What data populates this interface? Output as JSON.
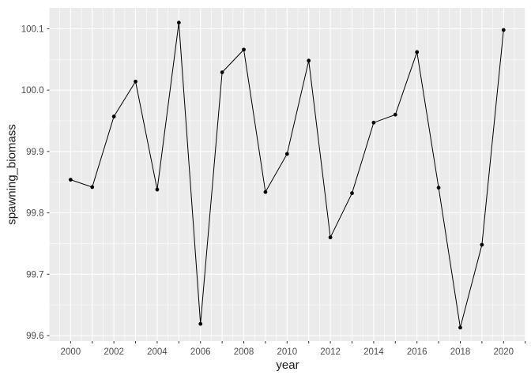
{
  "chart_data": {
    "type": "line",
    "title": "",
    "xlabel": "year",
    "ylabel": "spawning_biomass",
    "series": [
      {
        "name": "spawning_biomass",
        "x": [
          2000,
          2001,
          2002,
          2003,
          2004,
          2005,
          2006,
          2007,
          2008,
          2009,
          2010,
          2011,
          2012,
          2013,
          2014,
          2015,
          2016,
          2017,
          2018,
          2019,
          2020
        ],
        "values": [
          99.854,
          99.842,
          99.957,
          100.014,
          99.838,
          100.11,
          99.619,
          100.029,
          100.066,
          99.834,
          99.896,
          100.048,
          99.76,
          99.832,
          99.947,
          99.96,
          100.062,
          99.841,
          99.613,
          99.748,
          100.098
        ]
      }
    ],
    "xlim": [
      1999.02,
      2021.03
    ],
    "ylim": [
      99.591,
      100.134
    ],
    "x_labeled_years": [
      2000,
      2002,
      2004,
      2006,
      2008,
      2010,
      2012,
      2014,
      2016,
      2018,
      2020
    ],
    "x_tick_labels": [
      "2000",
      "2002",
      "2004",
      "2006",
      "2008",
      "2010",
      "2012",
      "2014",
      "2016",
      "2018",
      "2020"
    ],
    "y_ticks": [
      99.6,
      99.7,
      99.8,
      99.9,
      100.0,
      100.1
    ],
    "y_tick_labels": [
      "99.6",
      "99.7",
      "99.8",
      "99.9",
      "100.0",
      "100.1"
    ],
    "x_tick_step_years": 1,
    "x_gridline_step_years": 0.5,
    "y_gridline_step": 0.05,
    "grid": true,
    "legend": false,
    "style": {
      "background": "#FFFFFF",
      "panel_bg": "#EBEBEB",
      "grid_color": "#FFFFFF",
      "line_color": "#000000",
      "point_color": "#000000",
      "point_radius": 2.4,
      "axis_text_color": "#4D4D4D",
      "axis_title_color": "#1A1A1A",
      "tick_color": "#333333"
    }
  }
}
